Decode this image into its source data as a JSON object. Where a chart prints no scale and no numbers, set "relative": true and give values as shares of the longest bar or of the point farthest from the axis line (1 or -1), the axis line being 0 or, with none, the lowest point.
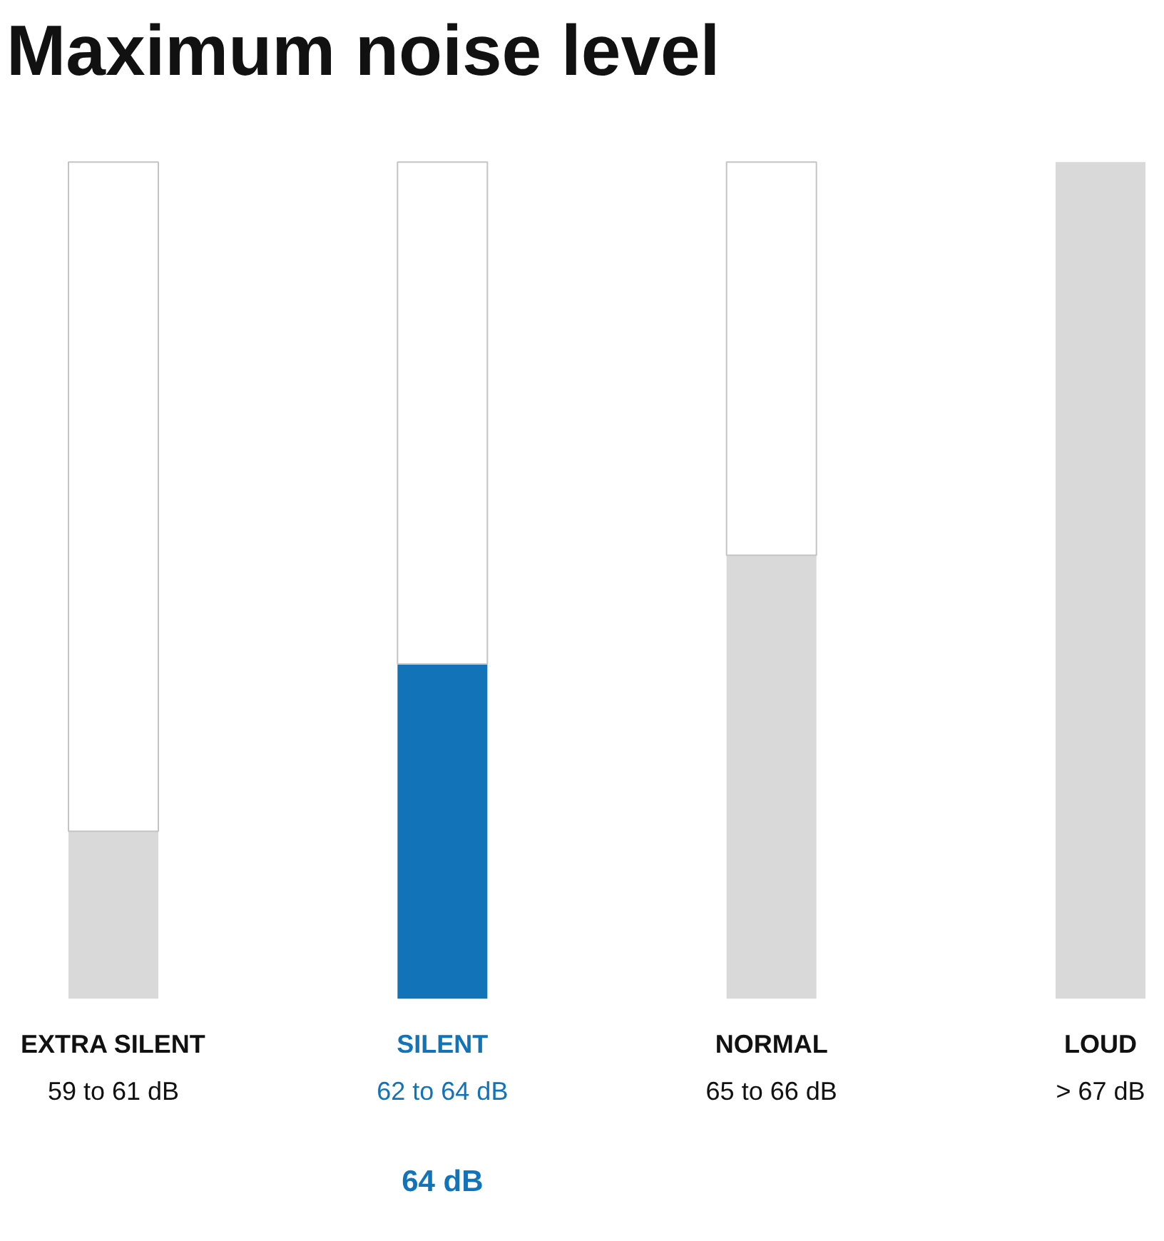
{
  "chart_data": {
    "type": "bar",
    "title": "Maximum noise level",
    "categories": [
      "EXTRA SILENT",
      "SILENT",
      "NORMAL",
      "LOUD"
    ],
    "relative": true,
    "stacked": true,
    "series": [
      {
        "values": [
          0.2,
          0.4,
          0.53,
          1
        ],
        "colors": [
          "#d9d9d9",
          "#1273b9",
          "#d9d9d9",
          "#d9d9d9"
        ]
      },
      {
        "values": [
          0.8,
          0.6,
          0.47,
          0
        ],
        "color": "#ffffff"
      }
    ],
    "annotations": [
      "59 to 61 dB",
      "62 to 64 dB",
      "65 to 66 dB",
      "> 67 dB",
      "64 dB"
    ]
  }
}
